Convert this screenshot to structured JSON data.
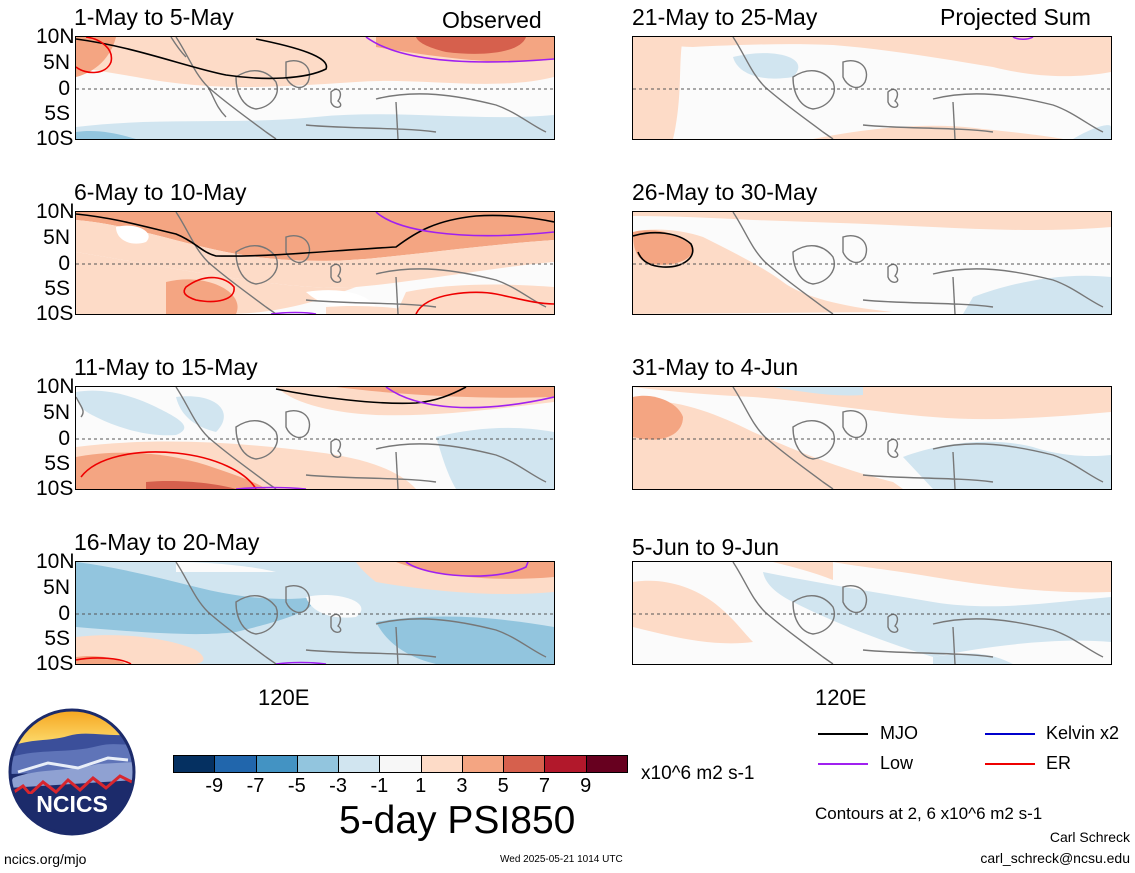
{
  "panels": [
    {
      "title": "1-May to 5-May",
      "tag": "Observed"
    },
    {
      "title": "21-May to 25-May",
      "tag": "Projected Sum"
    },
    {
      "title": "6-May to 10-May",
      "tag": ""
    },
    {
      "title": "26-May to 30-May",
      "tag": ""
    },
    {
      "title": "11-May to 15-May",
      "tag": ""
    },
    {
      "title": "31-May to 4-Jun",
      "tag": ""
    },
    {
      "title": "16-May to 20-May",
      "tag": ""
    },
    {
      "title": "5-Jun to 9-Jun",
      "tag": ""
    }
  ],
  "lat_labels": [
    "10N",
    "5N",
    "0",
    "5S",
    "10S"
  ],
  "lon_label": "120E",
  "colorbar": {
    "ticks": [
      "-9",
      "-7",
      "-5",
      "-3",
      "-1",
      "1",
      "3",
      "5",
      "7",
      "9"
    ],
    "colors": [
      "#053061",
      "#2166ac",
      "#4393c3",
      "#92c5de",
      "#d1e5f0",
      "#f7f7f7",
      "#fddbc7",
      "#f4a582",
      "#d6604d",
      "#b2182b",
      "#67001f"
    ],
    "units": "x10^6 m2 s-1"
  },
  "title": "5-day PSI850",
  "legend": [
    {
      "label": "MJO",
      "color": "#000000"
    },
    {
      "label": "Kelvin x2",
      "color": "#0000cc"
    },
    {
      "label": "Low",
      "color": "#a020f0"
    },
    {
      "label": "ER",
      "color": "#ee0000"
    }
  ],
  "contour_note": "Contours at 2, 6 x10^6 m2 s-1",
  "author": "Carl Schreck",
  "email": "carl_schreck@ncsu.edu",
  "site": "ncics.org/mjo",
  "timestamp": "Wed 2025-05-21 1014 UTC",
  "logo": {
    "text": "NCICS"
  }
}
